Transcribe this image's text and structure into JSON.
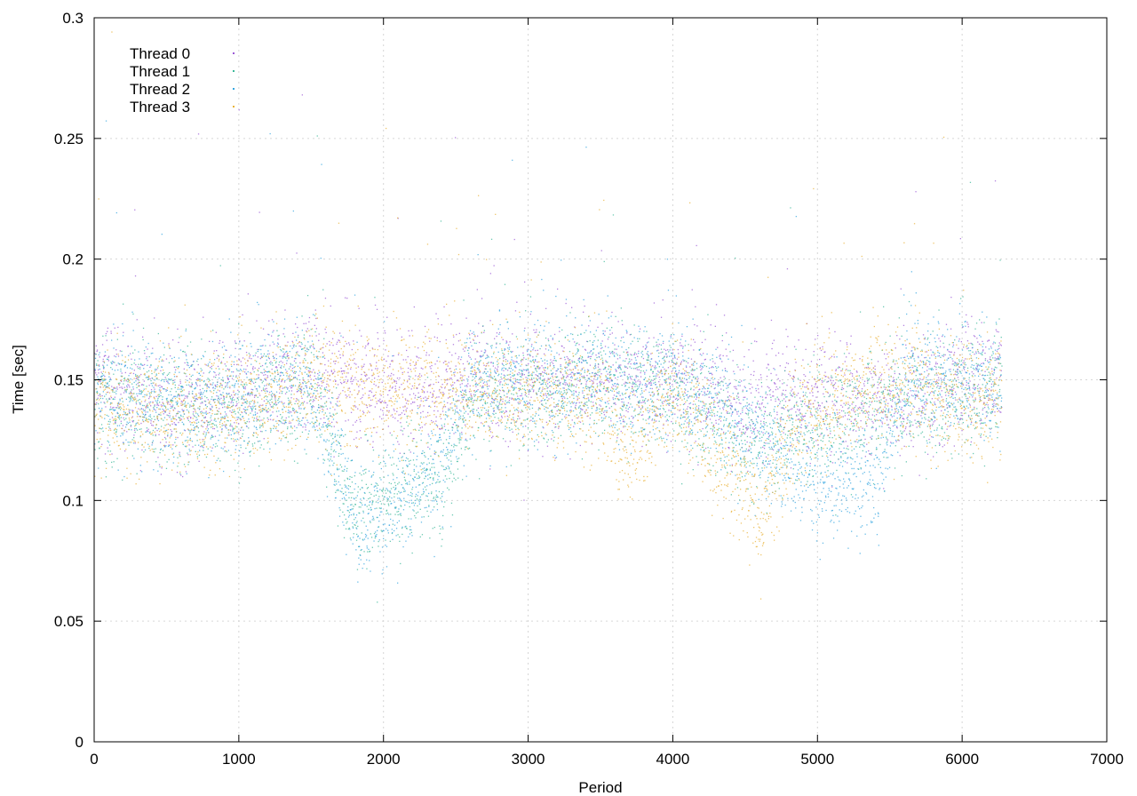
{
  "chart_data": {
    "type": "scatter",
    "title": "",
    "xlabel": "Period",
    "ylabel": "Time [sec]",
    "xlim": [
      0,
      7000
    ],
    "ylim": [
      0,
      0.3
    ],
    "x_ticks": [
      0,
      1000,
      2000,
      3000,
      4000,
      5000,
      6000,
      7000
    ],
    "x_tick_labels": [
      "0",
      "1000",
      "2000",
      "3000",
      "4000",
      "5000",
      "6000",
      "7000"
    ],
    "y_ticks": [
      0,
      0.05,
      0.1,
      0.15,
      0.2,
      0.25,
      0.3
    ],
    "y_tick_labels": [
      "0",
      "0.05",
      "0.1",
      "0.15",
      "0.2",
      "0.25",
      "0.3"
    ],
    "grid": true,
    "legend": "top-left",
    "x_range_of_points": [
      0,
      6270
    ],
    "series": [
      {
        "name": "Thread 0",
        "color": "#9b59d6",
        "trend": [
          [
            0,
            0.15
          ],
          [
            500,
            0.14
          ],
          [
            1000,
            0.145
          ],
          [
            1500,
            0.155
          ],
          [
            2000,
            0.145
          ],
          [
            2500,
            0.15
          ],
          [
            3000,
            0.15
          ],
          [
            3500,
            0.15
          ],
          [
            4000,
            0.15
          ],
          [
            4500,
            0.14
          ],
          [
            5000,
            0.145
          ],
          [
            5500,
            0.14
          ],
          [
            6000,
            0.15
          ],
          [
            6270,
            0.15
          ]
        ]
      },
      {
        "name": "Thread 1",
        "color": "#3cb89a",
        "trend": [
          [
            0,
            0.14
          ],
          [
            500,
            0.14
          ],
          [
            1000,
            0.14
          ],
          [
            1500,
            0.15
          ],
          [
            1800,
            0.095
          ],
          [
            2000,
            0.1
          ],
          [
            2400,
            0.11
          ],
          [
            2600,
            0.145
          ],
          [
            3000,
            0.145
          ],
          [
            3500,
            0.15
          ],
          [
            4000,
            0.145
          ],
          [
            4500,
            0.125
          ],
          [
            5000,
            0.13
          ],
          [
            5500,
            0.14
          ],
          [
            6000,
            0.145
          ],
          [
            6270,
            0.145
          ]
        ]
      },
      {
        "name": "Thread 2",
        "color": "#36a6e0",
        "trend": [
          [
            0,
            0.145
          ],
          [
            500,
            0.14
          ],
          [
            1000,
            0.145
          ],
          [
            1500,
            0.15
          ],
          [
            1800,
            0.09
          ],
          [
            2000,
            0.095
          ],
          [
            2400,
            0.115
          ],
          [
            2600,
            0.15
          ],
          [
            3000,
            0.15
          ],
          [
            3500,
            0.15
          ],
          [
            4000,
            0.15
          ],
          [
            4500,
            0.13
          ],
          [
            5000,
            0.105
          ],
          [
            5400,
            0.11
          ],
          [
            5600,
            0.15
          ],
          [
            6000,
            0.15
          ],
          [
            6270,
            0.15
          ]
        ]
      },
      {
        "name": "Thread 3",
        "color": "#e8b23a",
        "trend": [
          [
            0,
            0.14
          ],
          [
            500,
            0.135
          ],
          [
            1000,
            0.14
          ],
          [
            1500,
            0.15
          ],
          [
            2000,
            0.145
          ],
          [
            2500,
            0.145
          ],
          [
            3000,
            0.145
          ],
          [
            3500,
            0.14
          ],
          [
            3700,
            0.12
          ],
          [
            4000,
            0.145
          ],
          [
            4500,
            0.105
          ],
          [
            4600,
            0.09
          ],
          [
            4800,
            0.13
          ],
          [
            5000,
            0.14
          ],
          [
            5500,
            0.15
          ],
          [
            6000,
            0.14
          ],
          [
            6270,
            0.14
          ]
        ]
      }
    ]
  }
}
